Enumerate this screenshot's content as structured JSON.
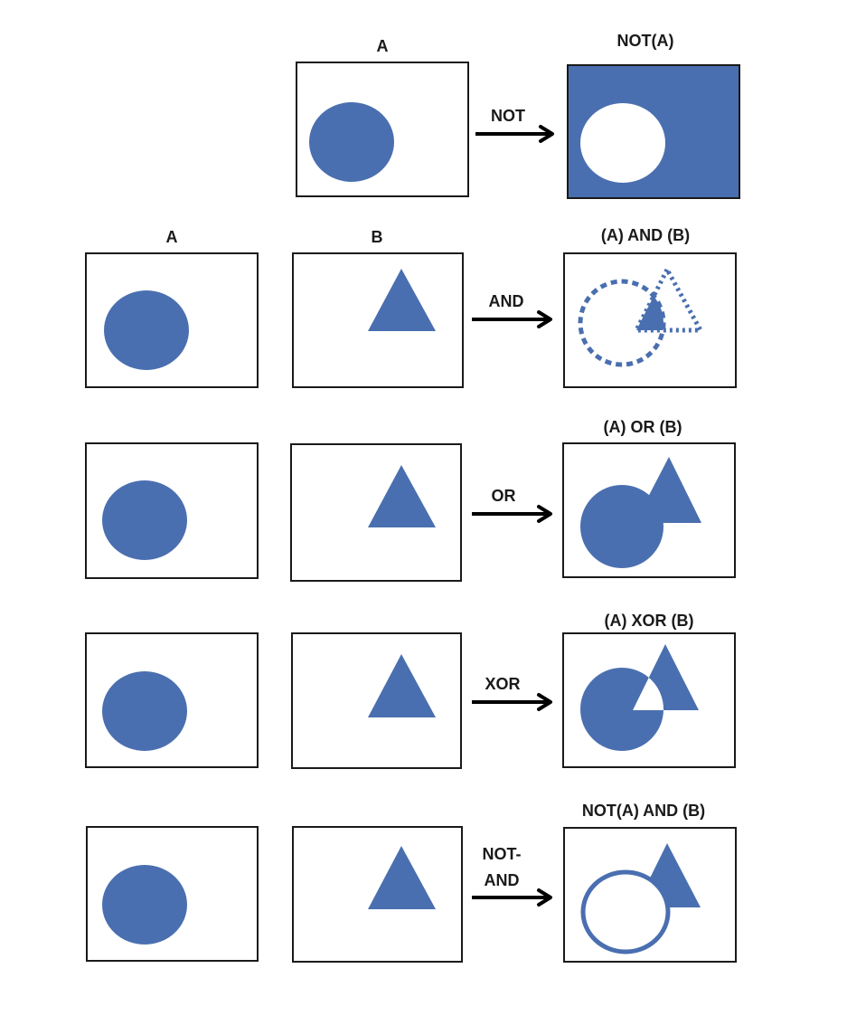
{
  "colors": {
    "shape": "#4a6fb0",
    "border": "#1a1a1a",
    "arrow": "#000000",
    "background": "#ffffff"
  },
  "icons": {
    "arrow": "right-arrow-icon",
    "circle": "circle-icon",
    "triangle": "triangle-icon"
  },
  "rows": [
    {
      "id": "not",
      "input_labels": [
        "A"
      ],
      "operator_lines": [
        "NOT"
      ],
      "result_label": "NOT(A)"
    },
    {
      "id": "and",
      "input_labels": [
        "A",
        "B"
      ],
      "operator_lines": [
        "AND"
      ],
      "result_label": "(A) AND (B)"
    },
    {
      "id": "or",
      "input_labels": [
        "",
        ""
      ],
      "operator_lines": [
        "OR"
      ],
      "result_label": "(A) OR (B)"
    },
    {
      "id": "xor",
      "input_labels": [
        "",
        ""
      ],
      "operator_lines": [
        "XOR"
      ],
      "result_label": "(A) XOR (B)"
    },
    {
      "id": "not-and",
      "input_labels": [
        "",
        ""
      ],
      "operator_lines": [
        "NOT-",
        "AND"
      ],
      "result_label": "NOT(A) AND (B)"
    }
  ]
}
